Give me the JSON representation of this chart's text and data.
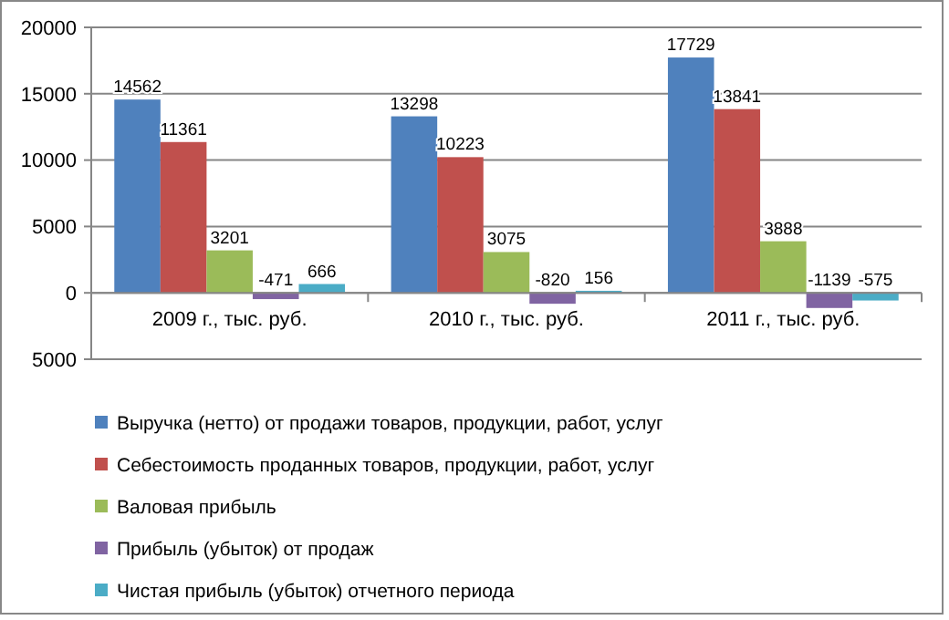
{
  "chart_data": {
    "type": "bar",
    "categories": [
      "2009 г., тыс. руб.",
      "2010 г., тыс. руб.",
      "2011 г., тыс. руб."
    ],
    "series": [
      {
        "name": "Выручка (нетто) от продажи товаров, продукции, работ, услуг",
        "color": "#4f81bd",
        "values": [
          14562,
          13298,
          17729
        ]
      },
      {
        "name": "Себестоимость проданных товаров, продукции, работ, услуг",
        "color": "#c0504d",
        "values": [
          11361,
          10223,
          13841
        ]
      },
      {
        "name": "Валовая прибыль",
        "color": "#9bbb59",
        "values": [
          3201,
          3075,
          3888
        ]
      },
      {
        "name": "Прибыль (убыток) от продаж",
        "color": "#8064a2",
        "values": [
          -471,
          -820,
          -1139
        ]
      },
      {
        "name": "Чистая прибыль (убыток) отчетного периода",
        "color": "#4bacc6",
        "values": [
          666,
          156,
          -575
        ]
      }
    ],
    "ylim": [
      -5000,
      20000
    ],
    "yticks": [
      {
        "value": -5000,
        "label": "5000"
      },
      0,
      5000,
      10000,
      15000,
      20000
    ],
    "grid": "y",
    "data_labels": true,
    "legend": "bottom"
  }
}
